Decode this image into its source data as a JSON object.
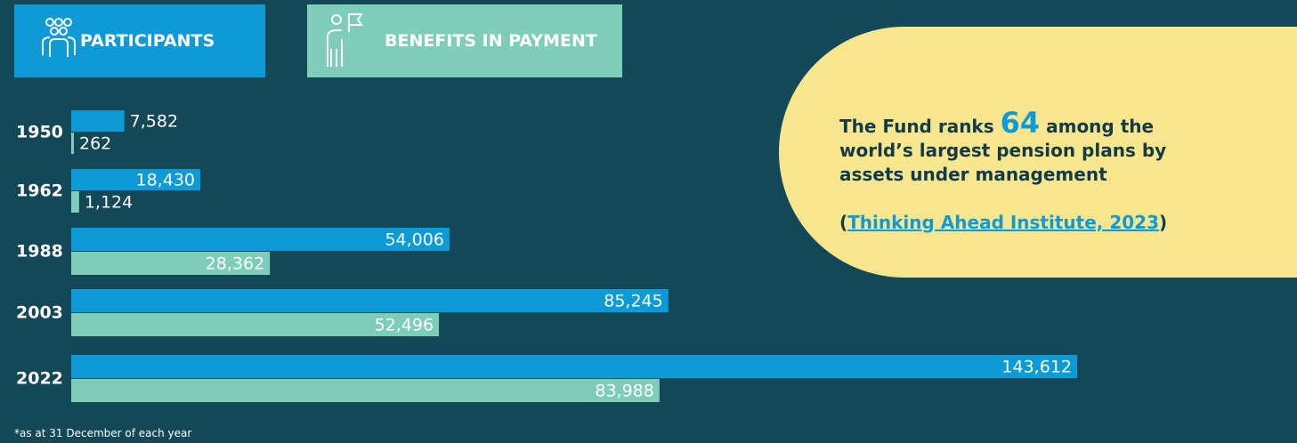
{
  "chart_data": {
    "type": "bar",
    "orientation": "horizontal",
    "categories": [
      "1950",
      "1962",
      "1988",
      "2003",
      "2022"
    ],
    "series": [
      {
        "name": "PARTICIPANTS",
        "color": "#0e9ad7",
        "values": [
          7582,
          18430,
          54006,
          85245,
          143612
        ],
        "value_labels": [
          "7,582",
          "18,430",
          "54,006",
          "85,245",
          "143,612"
        ]
      },
      {
        "name": "BENEFITS IN PAYMENT",
        "color": "#7dcdb9",
        "values": [
          262,
          1124,
          28362,
          52496,
          83988
        ],
        "value_labels": [
          "262",
          "1,124",
          "28,362",
          "52,496",
          "83,988"
        ]
      }
    ],
    "footnote": "*as at 31 December of each year"
  },
  "callout": {
    "text_before": "The Fund ranks ",
    "highlight": "64",
    "text_after": " among the world’s largest pension plans by assets under management",
    "source_prefix": "(",
    "source": "Thinking Ahead Institute, 2023",
    "source_suffix": ")"
  }
}
